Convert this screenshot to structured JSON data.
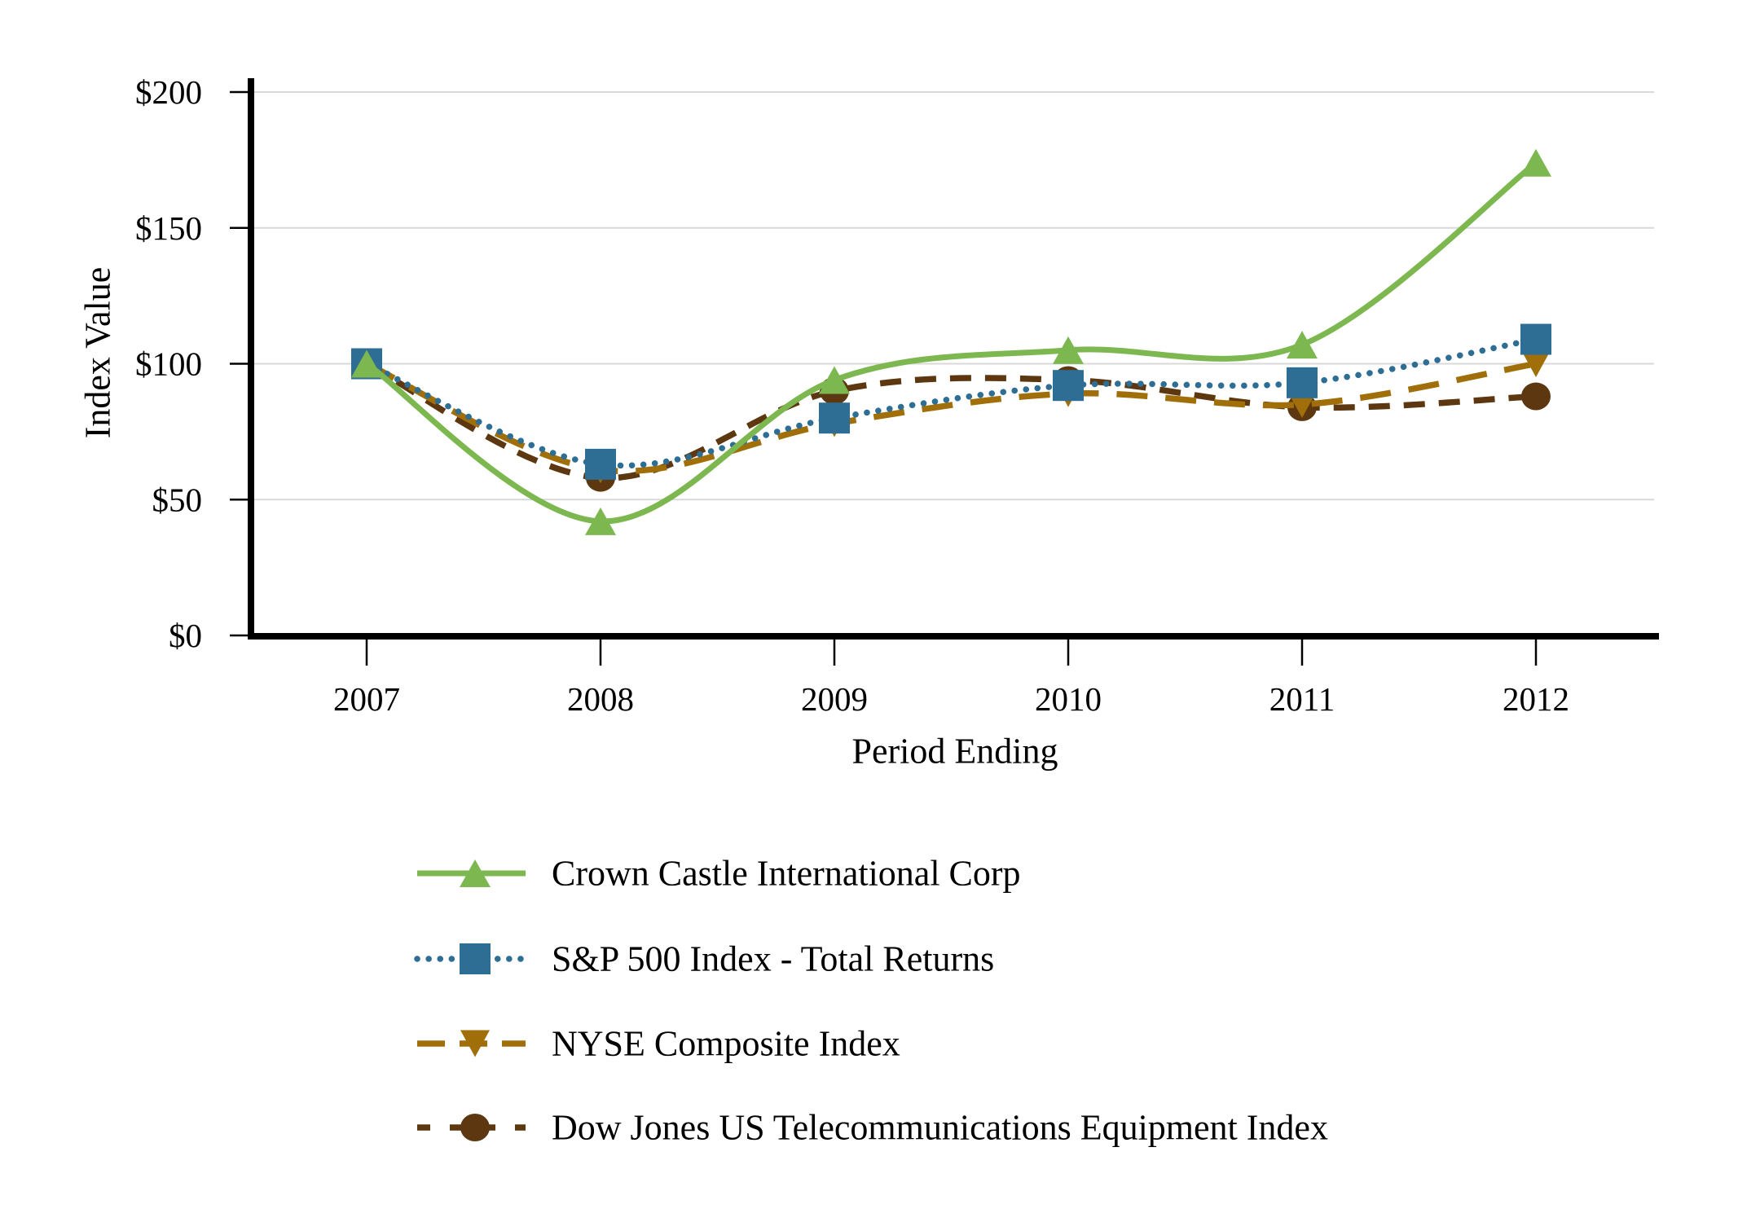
{
  "chart_data": {
    "type": "line",
    "title": "",
    "xlabel": "Period Ending",
    "ylabel": "Index Value",
    "x": [
      "2007",
      "2008",
      "2009",
      "2010",
      "2011",
      "2012"
    ],
    "y_tick_values": [
      0,
      50,
      100,
      150,
      200
    ],
    "y_tick_labels": [
      "$0",
      "$50",
      "$100",
      "$150",
      "$200"
    ],
    "ylim": [
      0,
      200
    ],
    "grid": true,
    "legend_position": "bottom-left",
    "colors": {
      "crown_castle": "#7CB84F",
      "sp500": "#2E6E94",
      "nyse": "#A06F0A",
      "dow_telecom": "#5C3710",
      "gridline": "#D9D9D9",
      "axis": "#000000"
    },
    "series": [
      {
        "name": "Crown Castle International Corp",
        "values": [
          100,
          42,
          94,
          105,
          107,
          174
        ],
        "color": "#7CB84F",
        "marker": "triangle-up",
        "line_style": "solid"
      },
      {
        "name": "S&P 500 Index - Total Returns",
        "values": [
          100,
          63,
          80,
          92,
          93,
          109
        ],
        "color": "#2E6E94",
        "marker": "square",
        "line_style": "dotted"
      },
      {
        "name": "NYSE Composite Index",
        "values": [
          100,
          61,
          78,
          89,
          85,
          100
        ],
        "color": "#A06F0A",
        "marker": "triangle-down",
        "line_style": "long-dash"
      },
      {
        "name": "Dow Jones US Telecommunications Equipment Index",
        "values": [
          100,
          58,
          90,
          94,
          84,
          88
        ],
        "color": "#5C3710",
        "marker": "circle",
        "line_style": "dash"
      }
    ]
  }
}
